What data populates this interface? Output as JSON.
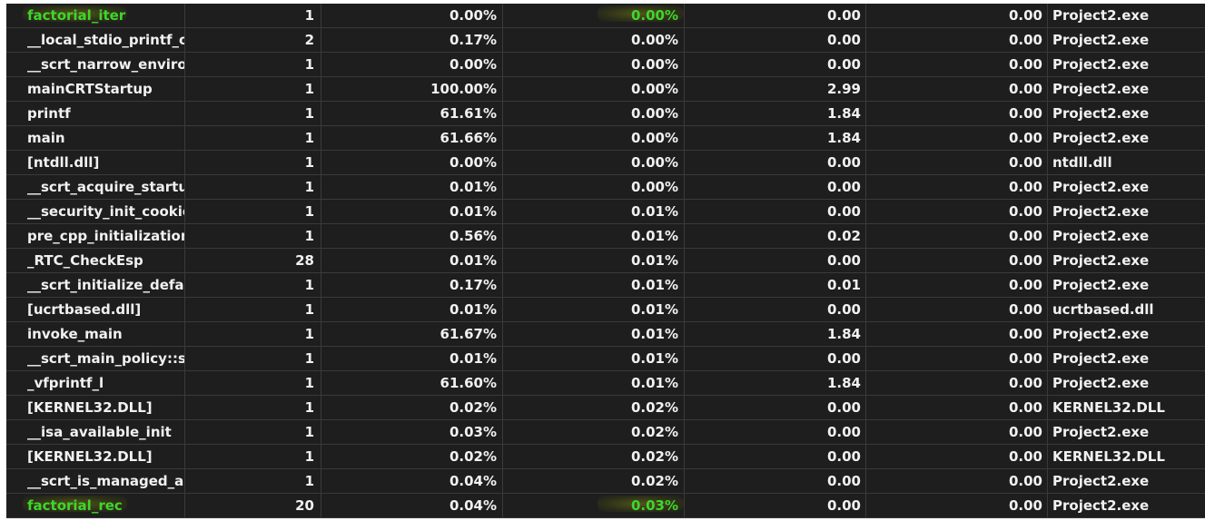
{
  "highlight_color": "#3fd62b",
  "rows": [
    {
      "name": "factorial_iter",
      "calls": "1",
      "total": "0.00%",
      "self": "0.00%",
      "total_ms": "0.00",
      "self_ms": "0.00",
      "module": "Project2.exe",
      "highlight": true
    },
    {
      "name": "__local_stdio_printf_o...",
      "calls": "2",
      "total": "0.17%",
      "self": "0.00%",
      "total_ms": "0.00",
      "self_ms": "0.00",
      "module": "Project2.exe",
      "highlight": false
    },
    {
      "name": "__scrt_narrow_enviro...",
      "calls": "1",
      "total": "0.00%",
      "self": "0.00%",
      "total_ms": "0.00",
      "self_ms": "0.00",
      "module": "Project2.exe",
      "highlight": false
    },
    {
      "name": "mainCRTStartup",
      "calls": "1",
      "total": "100.00%",
      "self": "0.00%",
      "total_ms": "2.99",
      "self_ms": "0.00",
      "module": "Project2.exe",
      "highlight": false
    },
    {
      "name": "printf",
      "calls": "1",
      "total": "61.61%",
      "self": "0.00%",
      "total_ms": "1.84",
      "self_ms": "0.00",
      "module": "Project2.exe",
      "highlight": false
    },
    {
      "name": "main",
      "calls": "1",
      "total": "61.66%",
      "self": "0.00%",
      "total_ms": "1.84",
      "self_ms": "0.00",
      "module": "Project2.exe",
      "highlight": false
    },
    {
      "name": "[ntdll.dll]",
      "calls": "1",
      "total": "0.00%",
      "self": "0.00%",
      "total_ms": "0.00",
      "self_ms": "0.00",
      "module": "ntdll.dll",
      "highlight": false
    },
    {
      "name": "__scrt_acquire_startu...",
      "calls": "1",
      "total": "0.01%",
      "self": "0.00%",
      "total_ms": "0.00",
      "self_ms": "0.00",
      "module": "Project2.exe",
      "highlight": false
    },
    {
      "name": "__security_init_cookie",
      "calls": "1",
      "total": "0.01%",
      "self": "0.01%",
      "total_ms": "0.00",
      "self_ms": "0.00",
      "module": "Project2.exe",
      "highlight": false
    },
    {
      "name": "pre_cpp_initialization",
      "calls": "1",
      "total": "0.56%",
      "self": "0.01%",
      "total_ms": "0.02",
      "self_ms": "0.00",
      "module": "Project2.exe",
      "highlight": false
    },
    {
      "name": "_RTC_CheckEsp",
      "calls": "28",
      "total": "0.01%",
      "self": "0.01%",
      "total_ms": "0.00",
      "self_ms": "0.00",
      "module": "Project2.exe",
      "highlight": false
    },
    {
      "name": "__scrt_initialize_defau...",
      "calls": "1",
      "total": "0.17%",
      "self": "0.01%",
      "total_ms": "0.01",
      "self_ms": "0.00",
      "module": "Project2.exe",
      "highlight": false
    },
    {
      "name": "[ucrtbased.dll]",
      "calls": "1",
      "total": "0.01%",
      "self": "0.01%",
      "total_ms": "0.00",
      "self_ms": "0.00",
      "module": "ucrtbased.dll",
      "highlight": false
    },
    {
      "name": "invoke_main",
      "calls": "1",
      "total": "61.67%",
      "self": "0.01%",
      "total_ms": "1.84",
      "self_ms": "0.00",
      "module": "Project2.exe",
      "highlight": false
    },
    {
      "name": "__scrt_main_policy::se...",
      "calls": "1",
      "total": "0.01%",
      "self": "0.01%",
      "total_ms": "0.00",
      "self_ms": "0.00",
      "module": "Project2.exe",
      "highlight": false
    },
    {
      "name": "_vfprintf_l",
      "calls": "1",
      "total": "61.60%",
      "self": "0.01%",
      "total_ms": "1.84",
      "self_ms": "0.00",
      "module": "Project2.exe",
      "highlight": false
    },
    {
      "name": "[KERNEL32.DLL]",
      "calls": "1",
      "total": "0.02%",
      "self": "0.02%",
      "total_ms": "0.00",
      "self_ms": "0.00",
      "module": "KERNEL32.DLL",
      "highlight": false
    },
    {
      "name": "__isa_available_init",
      "calls": "1",
      "total": "0.03%",
      "self": "0.02%",
      "total_ms": "0.00",
      "self_ms": "0.00",
      "module": "Project2.exe",
      "highlight": false
    },
    {
      "name": "[KERNEL32.DLL]",
      "calls": "1",
      "total": "0.02%",
      "self": "0.02%",
      "total_ms": "0.00",
      "self_ms": "0.00",
      "module": "KERNEL32.DLL",
      "highlight": false
    },
    {
      "name": "__scrt_is_managed_app",
      "calls": "1",
      "total": "0.04%",
      "self": "0.02%",
      "total_ms": "0.00",
      "self_ms": "0.00",
      "module": "Project2.exe",
      "highlight": false
    },
    {
      "name": "factorial_rec",
      "calls": "20",
      "total": "0.04%",
      "self": "0.03%",
      "total_ms": "0.00",
      "self_ms": "0.00",
      "module": "Project2.exe",
      "highlight": true
    }
  ]
}
